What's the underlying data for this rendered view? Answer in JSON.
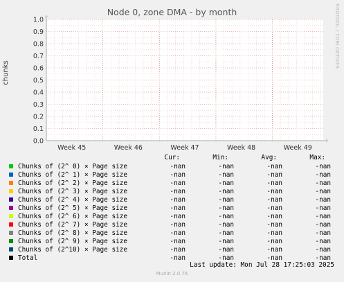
{
  "graph": {
    "title": "Node 0, zone DMA - by month",
    "watermark": "RRDTOOL / TOBI OETIKER",
    "footer_update": "Last update: Mon Jul 28 17:25:03 2025",
    "footer_version": "Munin 2.0.76"
  },
  "chart_data": {
    "type": "line",
    "title": "Node 0, zone DMA - by month",
    "xlabel": "",
    "ylabel": "chunks",
    "ylim": [
      0,
      1.0
    ],
    "yticks": [
      "0.0",
      "0.1",
      "0.2",
      "0.3",
      "0.4",
      "0.5",
      "0.6",
      "0.7",
      "0.8",
      "0.9",
      "1.0"
    ],
    "xticks": [
      "Week 45",
      "Week 46",
      "Week 47",
      "Week 48",
      "Week 49"
    ],
    "grid": true,
    "series": []
  },
  "legend": {
    "headers": {
      "cur": "Cur:",
      "min": "Min:",
      "avg": "Avg:",
      "max": "Max:"
    },
    "rows": [
      {
        "label": "Chunks of (2^ 0) × Page size",
        "color": "#00cc00",
        "cur": "-nan",
        "min": "-nan",
        "avg": "-nan",
        "max": "-nan"
      },
      {
        "label": "Chunks of (2^ 1) × Page size",
        "color": "#0066b3",
        "cur": "-nan",
        "min": "-nan",
        "avg": "-nan",
        "max": "-nan"
      },
      {
        "label": "Chunks of (2^ 2) × Page size",
        "color": "#ff8000",
        "cur": "-nan",
        "min": "-nan",
        "avg": "-nan",
        "max": "-nan"
      },
      {
        "label": "Chunks of (2^ 3) × Page size",
        "color": "#ffcc00",
        "cur": "-nan",
        "min": "-nan",
        "avg": "-nan",
        "max": "-nan"
      },
      {
        "label": "Chunks of (2^ 4) × Page size",
        "color": "#330099",
        "cur": "-nan",
        "min": "-nan",
        "avg": "-nan",
        "max": "-nan"
      },
      {
        "label": "Chunks of (2^ 5) × Page size",
        "color": "#990099",
        "cur": "-nan",
        "min": "-nan",
        "avg": "-nan",
        "max": "-nan"
      },
      {
        "label": "Chunks of (2^ 6) × Page size",
        "color": "#ccff00",
        "cur": "-nan",
        "min": "-nan",
        "avg": "-nan",
        "max": "-nan"
      },
      {
        "label": "Chunks of (2^ 7) × Page size",
        "color": "#ff0000",
        "cur": "-nan",
        "min": "-nan",
        "avg": "-nan",
        "max": "-nan"
      },
      {
        "label": "Chunks of (2^ 8) × Page size",
        "color": "#808080",
        "cur": "-nan",
        "min": "-nan",
        "avg": "-nan",
        "max": "-nan"
      },
      {
        "label": "Chunks of (2^ 9) × Page size",
        "color": "#008f00",
        "cur": "-nan",
        "min": "-nan",
        "avg": "-nan",
        "max": "-nan"
      },
      {
        "label": "Chunks of (2^10) × Page size",
        "color": "#00487d",
        "cur": "-nan",
        "min": "-nan",
        "avg": "-nan",
        "max": "-nan"
      },
      {
        "label": "Total",
        "color": "#000000",
        "cur": "-nan",
        "min": "-nan",
        "avg": "-nan",
        "max": "-nan"
      }
    ]
  }
}
